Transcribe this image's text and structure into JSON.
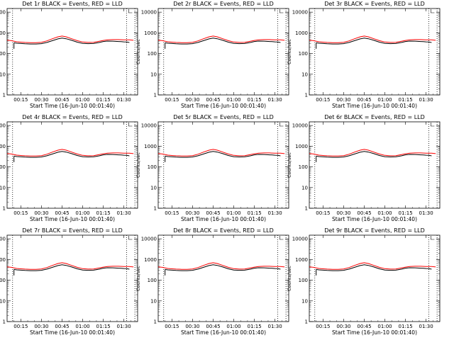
{
  "chart_data": {
    "type": "line",
    "colors": {
      "events": "#000000",
      "lld": "#ff0000",
      "axes": "#000000",
      "background": "#ffffff"
    },
    "y_scale": "log",
    "ylim": [
      1,
      15000
    ],
    "xlim_minutes": [
      5,
      100
    ],
    "ytick_values": [
      1,
      10,
      100,
      1000,
      10000
    ],
    "ytick_labels": [
      "1",
      "10",
      "100",
      "1000",
      "10000"
    ],
    "xtick_values": [
      15,
      30,
      45,
      60,
      75,
      90
    ],
    "xtick_labels": [
      "00:15",
      "00:30",
      "00:45",
      "01:00",
      "01:15",
      "01:30"
    ],
    "vline_minutes": [
      9,
      92,
      98
    ],
    "ylabel": "Counts/sec",
    "xlabel": "Start Time (16-Jun-10 00:01:40)",
    "series": [
      {
        "name": "Events",
        "color": "#000000",
        "x": [
          10,
          12,
          15,
          18,
          22,
          26,
          30,
          34,
          38,
          42,
          45,
          48,
          52,
          56,
          60,
          64,
          68,
          72,
          75,
          78,
          82,
          86,
          88,
          90,
          92,
          94
        ],
        "y": [
          330,
          315,
          305,
          295,
          290,
          290,
          300,
          345,
          420,
          510,
          560,
          520,
          435,
          355,
          310,
          300,
          305,
          340,
          380,
          400,
          395,
          380,
          375,
          365,
          360,
          340
        ]
      },
      {
        "name": "LLD",
        "color": "#ff0000",
        "x": [
          5,
          8,
          12,
          15,
          18,
          22,
          26,
          30,
          34,
          38,
          42,
          45,
          48,
          52,
          56,
          60,
          64,
          68,
          72,
          75,
          78,
          82,
          86,
          90,
          94,
          97
        ],
        "y": [
          440,
          420,
          370,
          355,
          345,
          335,
          335,
          350,
          410,
          520,
          640,
          700,
          640,
          520,
          420,
          360,
          345,
          350,
          390,
          430,
          455,
          470,
          470,
          460,
          455,
          435
        ]
      }
    ],
    "panels": [
      {
        "title": "Det 1r BLACK = Events, RED = LLD"
      },
      {
        "title": "Det 2r BLACK = Events, RED = LLD"
      },
      {
        "title": "Det 3r BLACK = Events, RED = LLD"
      },
      {
        "title": "Det 4r BLACK = Events, RED = LLD"
      },
      {
        "title": "Det 5r BLACK = Events, RED = LLD"
      },
      {
        "title": "Det 6r BLACK = Events, RED = LLD"
      },
      {
        "title": "Det 7r BLACK = Events, RED = LLD"
      },
      {
        "title": "Det 8r BLACK = Events, RED = LLD"
      },
      {
        "title": "Det 9r BLACK = Events, RED = LLD"
      }
    ]
  }
}
